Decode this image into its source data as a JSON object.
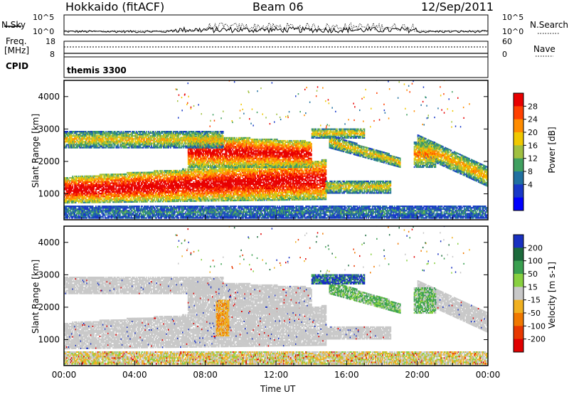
{
  "header": {
    "title": "Hokkaido (fitACF)",
    "beam": "Beam 06",
    "date": "12/Sep/2011"
  },
  "strip": {
    "nsky_label": "N.Sky",
    "nsky_ticks": [
      "10^5",
      "10^0"
    ],
    "nsearch_label": "N.Search",
    "nsearch_ticks": [
      "10^5",
      "10^0"
    ],
    "freq_label": "Freq.",
    "freq_unit": "[MHz]",
    "freq_ticks": [
      "18",
      "8"
    ],
    "nave_label": "Nave",
    "nave_ticks": [
      "60",
      "0"
    ],
    "cpid_label": "CPID",
    "cpid_value": "themis 3300"
  },
  "chart_data": [
    {
      "type": "heatmap",
      "name": "power",
      "ylabel": "Slant Range [km]",
      "xlabel": "Time UT",
      "x_ticks": [
        "00:00",
        "04:00",
        "08:00",
        "12:00",
        "16:00",
        "20:00",
        "00:00"
      ],
      "y_ticks": [
        4000,
        3000,
        2000,
        1000
      ],
      "ylim": [
        200,
        4500
      ],
      "xlim_hours": [
        0,
        24
      ],
      "colorbar": {
        "label": "Power [dB]",
        "ticks": [
          "28",
          "24",
          "20",
          "16",
          "12",
          "8",
          "4"
        ],
        "colors": [
          "#e80000",
          "#ff4000",
          "#ff8c00",
          "#f0c800",
          "#a0c040",
          "#40a060",
          "#2070a0",
          "#1838c8",
          "#0000ff"
        ]
      }
    },
    {
      "type": "heatmap",
      "name": "velocity",
      "ylabel": "Slant Range [km]",
      "xlabel": "Time UT",
      "x_ticks": [
        "00:00",
        "04:00",
        "08:00",
        "12:00",
        "16:00",
        "20:00",
        "00:00"
      ],
      "y_ticks": [
        4000,
        3000,
        2000,
        1000
      ],
      "ylim": [
        200,
        4500
      ],
      "xlim_hours": [
        0,
        24
      ],
      "colorbar": {
        "label": "Velocity [m s-1]",
        "ticks": [
          "200",
          "100",
          "50",
          "15",
          "-15",
          "-50",
          "-100",
          "-200"
        ],
        "colors": [
          "#1830c0",
          "#1c6a3c",
          "#3aa050",
          "#88d040",
          "#c8c8c8",
          "#f0b020",
          "#f07800",
          "#e83800",
          "#e00000"
        ]
      }
    }
  ],
  "axis": {
    "xlabel": "Time UT",
    "x_ticks": [
      "00:00",
      "04:00",
      "08:00",
      "12:00",
      "16:00",
      "20:00",
      "00:00"
    ]
  }
}
